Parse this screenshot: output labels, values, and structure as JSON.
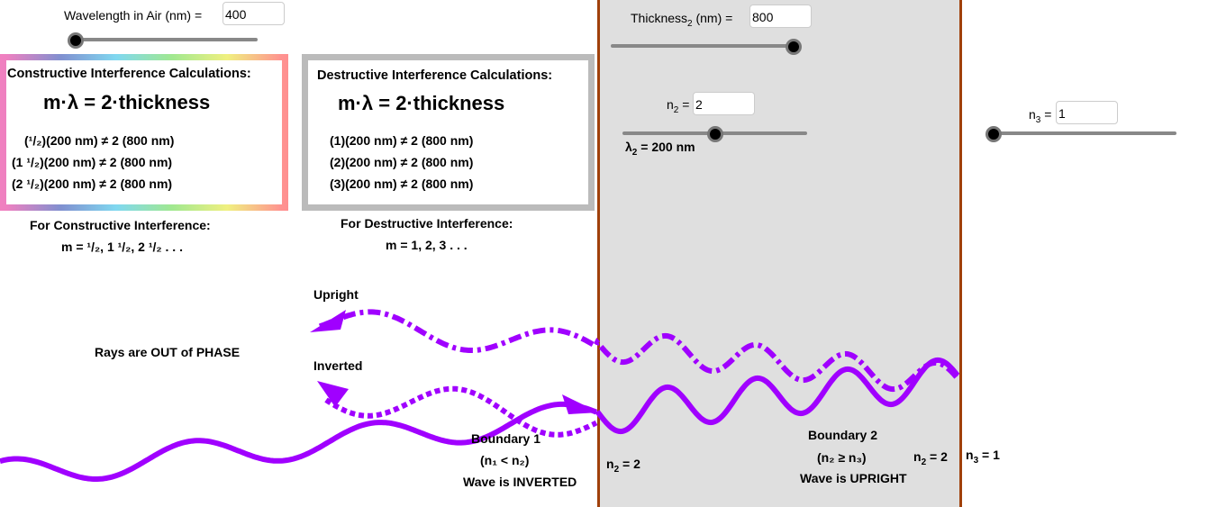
{
  "colors": {
    "wave": "#a000ff",
    "boundary": "#a0400a",
    "medium_bg": "#dfdfdf"
  },
  "wavelength": {
    "label": "Wavelength in Air (nm) =",
    "value": "400",
    "slider_fraction": 0.0
  },
  "thickness": {
    "label": "Thickness",
    "sub": "2",
    "unit": " (nm) =",
    "value": "800",
    "slider_fraction": 1.0
  },
  "n2": {
    "label": "n",
    "sub": "2",
    "eq": " =",
    "value": "2",
    "slider_fraction": 0.5
  },
  "n3": {
    "label": "n",
    "sub": "3",
    "eq": " =",
    "value": "1",
    "slider_fraction": 0.0
  },
  "lambda2": {
    "label": "λ",
    "sub": "2",
    "value": " = 200 nm"
  },
  "constructive": {
    "title": "Constructive Interference Calculations:",
    "equation": "m·λ  =  2·thickness",
    "lines": [
      "(¹/₂)(200 nm) ≠ 2 (800 nm)",
      "(1 ¹/₂)(200 nm) ≠ 2 (800 nm)",
      "(2 ¹/₂)(200 nm) ≠ 2 (800 nm)"
    ],
    "caption": "For Constructive Interference:",
    "m_values": "m = ¹/₂, 1 ¹/₂, 2 ¹/₂ . . ."
  },
  "destructive": {
    "title": "Destructive Interference Calculations:",
    "equation": "m·λ  =  2·thickness",
    "lines": [
      "(1)(200 nm) ≠ 2 (800 nm)",
      "(2)(200 nm) ≠ 2 (800 nm)",
      "(3)(200 nm) ≠ 2 (800 nm)"
    ],
    "caption": "For Destructive Interference:",
    "m_values": "m = 1, 2, 3 . . ."
  },
  "labels": {
    "upright": "Upright",
    "inverted": "Inverted",
    "phase": "Rays are OUT of PHASE",
    "boundary1": "Boundary 1",
    "boundary1_cond": "(n₁  <  n₂)",
    "boundary1_result": "Wave is INVERTED",
    "boundary2": "Boundary 2",
    "boundary2_cond": "(n₂  ≥  n₃)",
    "boundary2_result": "Wave is UPRIGHT",
    "n2_left": {
      "n": "n",
      "sub": "2",
      "val": " = 2"
    },
    "n2_right": {
      "n": "n",
      "sub": "2",
      "val": " = 2"
    },
    "n3_right": {
      "n": "n",
      "sub": "3",
      "val": " = 1"
    }
  }
}
